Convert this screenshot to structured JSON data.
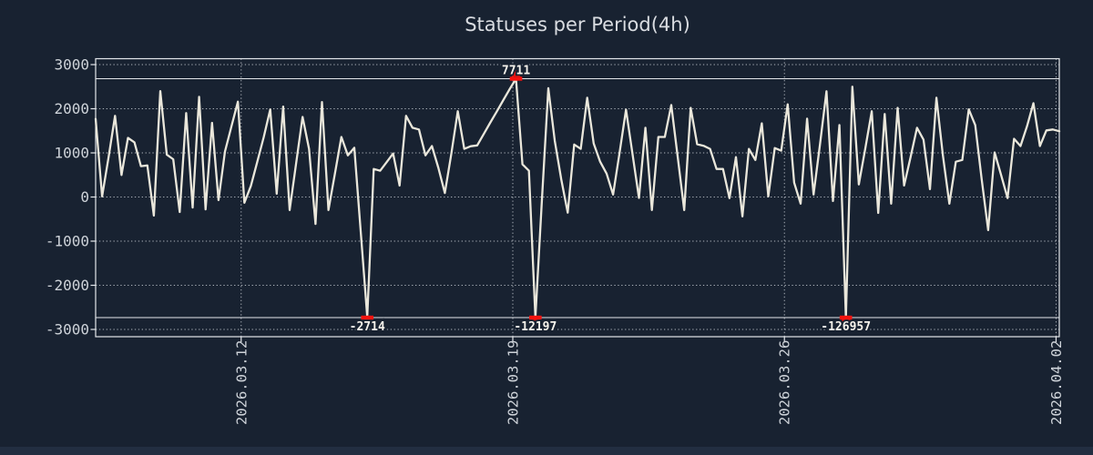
{
  "title": "Statuses per Period(4h)",
  "colors": {
    "background": "#182231",
    "bottom_strip": "#222e41",
    "line": "#eae7db",
    "marker_red": "#f5120e",
    "grid_dotted": "#d5dae0",
    "frame": "#e3e6ea",
    "axis_text": "#ced3d9",
    "title_text": "#d9dce1",
    "outlier_label_text": "#f6f3ec"
  },
  "chart_data": {
    "type": "line",
    "title": "Statuses per Period(4h)",
    "xlabel": "",
    "ylabel": "",
    "grid": true,
    "ylim": [
      -3000,
      3000
    ],
    "y_ticks": [
      3000,
      2000,
      1000,
      0,
      -1000,
      -2000,
      -3000
    ],
    "x_ticks": [
      {
        "label": "2026.03.12",
        "pos": 22.5
      },
      {
        "label": "2026.03.19",
        "pos": 64.5
      },
      {
        "label": "2026.03.26",
        "pos": 106.5
      },
      {
        "label": "2026.04.02",
        "pos": 148.5
      }
    ],
    "period_hours": 4,
    "clip_top_value": 2700,
    "clip_bottom_value": -2700,
    "values": [
      1770,
      15,
      900,
      1840,
      500,
      1340,
      1240,
      700,
      715,
      -420,
      2400,
      960,
      855,
      -340,
      1900,
      -240,
      2270,
      -280,
      1680,
      -70,
      1030,
      1600,
      2160,
      -130,
      250,
      800,
      1360,
      1985,
      75,
      2050,
      -295,
      760,
      1815,
      1090,
      -610,
      2150,
      -295,
      530,
      1360,
      945,
      1115,
      -800,
      -2714,
      635,
      595,
      790,
      985,
      260,
      1840,
      1570,
      1530,
      945,
      1155,
      660,
      90,
      980,
      1945,
      1090,
      1150,
      1170,
      1425,
      1680,
      1930,
      2185,
      2440,
      7711,
      740,
      595,
      -12197,
      -90,
      2465,
      1270,
      400,
      -355,
      1190,
      1090,
      2250,
      1215,
      800,
      530,
      55,
      1000,
      1980,
      980,
      -20,
      1570,
      -295,
      1360,
      1360,
      2085,
      900,
      -295,
      2020,
      1195,
      1160,
      1090,
      635,
      635,
      -25,
      905,
      -440,
      1090,
      840,
      1670,
      15,
      1110,
      1050,
      2100,
      325,
      -150,
      1775,
      55,
      1200,
      2395,
      -90,
      1630,
      -126957,
      2500,
      285,
      1100,
      1945,
      -360,
      1880,
      -150,
      2020,
      260,
      900,
      1570,
      1300,
      180,
      2250,
      945,
      -150,
      800,
      840,
      1985,
      1630,
      400,
      -750,
      1010,
      500,
      -25,
      1320,
      1155,
      1600,
      2125,
      1155,
      1510,
      1530,
      1490
    ],
    "annotations": [
      {
        "index": 65,
        "value": 7711,
        "label": "7711",
        "dir": "up"
      },
      {
        "index": 42,
        "value": -2714,
        "label": "-2714",
        "dir": "down"
      },
      {
        "index": 68,
        "value": -12197,
        "label": "-12197",
        "dir": "down"
      },
      {
        "index": 116,
        "value": -126957,
        "label": "-126957",
        "dir": "down"
      }
    ]
  }
}
